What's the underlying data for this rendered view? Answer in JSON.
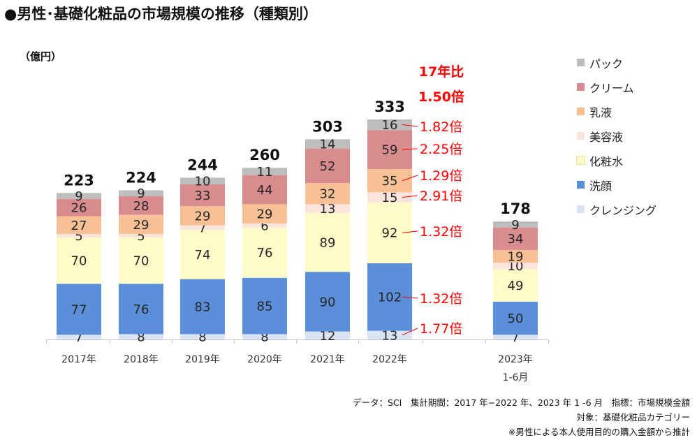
{
  "title": "●男性･基礎化粧品の市場規模の推移（種類別）",
  "unit_label": "（億円）",
  "colors": {
    "クレンジング": "#dae3f3",
    "洗顔": "#5b8fd9",
    "化粧水": "#fffbc9",
    "美容液": "#fbe4dc",
    "乳液": "#f8c195",
    "クリーム": "#d98c8e",
    "パック": "#bdbdbd",
    "ratio": "#ff0000"
  },
  "legend": [
    "パック",
    "クリーム",
    "乳液",
    "美容液",
    "化粧水",
    "洗顔",
    "クレンジング"
  ],
  "chart_data": {
    "type": "bar",
    "stacked": true,
    "categories": [
      "2017年",
      "2018年",
      "2019年",
      "2020年",
      "2021年",
      "2022年",
      "2023年"
    ],
    "category_sublabels": [
      "",
      "",
      "",
      "",
      "",
      "",
      "1-6月"
    ],
    "series": [
      {
        "name": "クレンジング",
        "values": [
          7,
          8,
          8,
          8,
          12,
          13,
          7
        ]
      },
      {
        "name": "洗顔",
        "values": [
          77,
          76,
          83,
          85,
          90,
          102,
          50
        ]
      },
      {
        "name": "化粧水",
        "values": [
          70,
          70,
          74,
          76,
          89,
          92,
          49
        ]
      },
      {
        "name": "美容液",
        "values": [
          5,
          5,
          7,
          6,
          13,
          15,
          10
        ]
      },
      {
        "name": "乳液",
        "values": [
          27,
          29,
          29,
          29,
          32,
          35,
          19
        ]
      },
      {
        "name": "クリーム",
        "values": [
          26,
          28,
          33,
          44,
          52,
          59,
          34
        ]
      },
      {
        "name": "パック",
        "values": [
          9,
          9,
          10,
          11,
          14,
          16,
          9
        ]
      }
    ],
    "totals": [
      223,
      224,
      244,
      260,
      303,
      333,
      178
    ],
    "ratio_header": [
      "17年比",
      "1.50倍"
    ],
    "ratios": [
      {
        "series": "パック",
        "label": "1.82倍"
      },
      {
        "series": "クリーム",
        "label": "2.25倍"
      },
      {
        "series": "乳液",
        "label": "1.29倍"
      },
      {
        "series": "美容液",
        "label": "2.91倍"
      },
      {
        "series": "化粧水",
        "label": "1.32倍"
      },
      {
        "series": "洗顔",
        "label": "1.32倍"
      },
      {
        "series": "クレンジング",
        "label": "1.77倍"
      }
    ],
    "ylim": [
      0,
      350
    ]
  },
  "notes": [
    "データ：SCI　集計期間：2017 年−2022 年、2023 年 1 -6 月　指標：市場規模金額",
    "対象：基礎化粧品カテゴリー",
    "※男性による本人使用目的の購入金額から推計"
  ]
}
